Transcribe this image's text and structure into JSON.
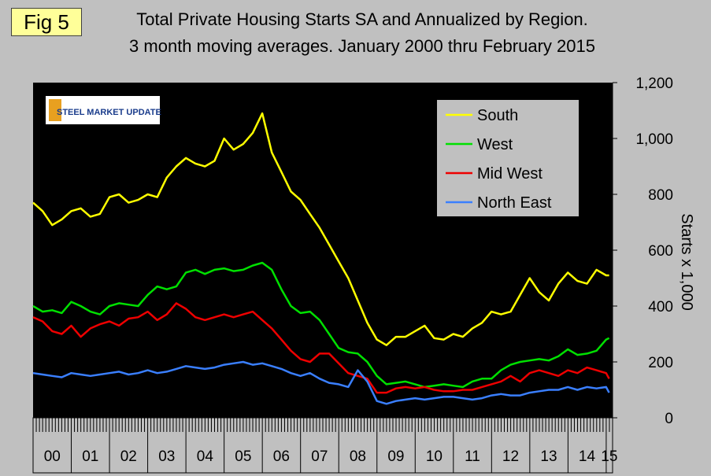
{
  "figure_label": "Fig 5",
  "logo_text": "STEEL MARKET UPDATE",
  "colors": {
    "plot_bg": "#000000",
    "south": "#ffff00",
    "west": "#00e000",
    "midwest": "#ee0000",
    "northeast": "#3a7fff",
    "page_bg": "#c0c0c0"
  },
  "chart_data": {
    "type": "line",
    "title": "Total Private Housing Starts SA and Annualized by Region.",
    "subtitle": "3 month moving averages. January 2000 thru February 2015",
    "ylabel": "Starts x 1,000",
    "xlabel": "",
    "ylim": [
      0,
      1200
    ],
    "yticks": [
      0,
      200,
      400,
      600,
      800,
      1000,
      1200
    ],
    "ytick_labels": [
      "0",
      "200",
      "400",
      "600",
      "800",
      "1,000",
      "1,200"
    ],
    "xlim": [
      2000.0,
      2015.17
    ],
    "year_labels": [
      "00",
      "01",
      "02",
      "03",
      "04",
      "05",
      "06",
      "07",
      "08",
      "09",
      "10",
      "11",
      "12",
      "13",
      "14",
      "15"
    ],
    "legend_position": "top-right",
    "grid": false,
    "series": [
      {
        "name": "South",
        "color": "#ffff00",
        "x": [
          2000.0,
          2000.25,
          2000.5,
          2000.75,
          2001.0,
          2001.25,
          2001.5,
          2001.75,
          2002.0,
          2002.25,
          2002.5,
          2002.75,
          2003.0,
          2003.25,
          2003.5,
          2003.75,
          2004.0,
          2004.25,
          2004.5,
          2004.75,
          2005.0,
          2005.25,
          2005.5,
          2005.75,
          2006.0,
          2006.25,
          2006.5,
          2006.75,
          2007.0,
          2007.25,
          2007.5,
          2007.75,
          2008.0,
          2008.25,
          2008.5,
          2008.75,
          2009.0,
          2009.25,
          2009.5,
          2009.75,
          2010.0,
          2010.25,
          2010.5,
          2010.75,
          2011.0,
          2011.25,
          2011.5,
          2011.75,
          2012.0,
          2012.25,
          2012.5,
          2012.75,
          2013.0,
          2013.25,
          2013.5,
          2013.75,
          2014.0,
          2014.25,
          2014.5,
          2014.75,
          2015.0,
          2015.08
        ],
        "y": [
          770,
          740,
          690,
          710,
          740,
          750,
          720,
          730,
          790,
          800,
          770,
          780,
          800,
          790,
          860,
          900,
          930,
          910,
          900,
          920,
          1000,
          960,
          980,
          1020,
          1090,
          950,
          880,
          810,
          780,
          730,
          680,
          620,
          560,
          500,
          420,
          340,
          280,
          260,
          290,
          290,
          310,
          330,
          285,
          280,
          300,
          290,
          320,
          340,
          380,
          370,
          380,
          440,
          500,
          450,
          420,
          480,
          520,
          490,
          480,
          530,
          510,
          510
        ]
      },
      {
        "name": "West",
        "color": "#00e000",
        "x": [
          2000.0,
          2000.25,
          2000.5,
          2000.75,
          2001.0,
          2001.25,
          2001.5,
          2001.75,
          2002.0,
          2002.25,
          2002.5,
          2002.75,
          2003.0,
          2003.25,
          2003.5,
          2003.75,
          2004.0,
          2004.25,
          2004.5,
          2004.75,
          2005.0,
          2005.25,
          2005.5,
          2005.75,
          2006.0,
          2006.25,
          2006.5,
          2006.75,
          2007.0,
          2007.25,
          2007.5,
          2007.75,
          2008.0,
          2008.25,
          2008.5,
          2008.75,
          2009.0,
          2009.25,
          2009.5,
          2009.75,
          2010.0,
          2010.25,
          2010.5,
          2010.75,
          2011.0,
          2011.25,
          2011.5,
          2011.75,
          2012.0,
          2012.25,
          2012.5,
          2012.75,
          2013.0,
          2013.25,
          2013.5,
          2013.75,
          2014.0,
          2014.25,
          2014.5,
          2014.75,
          2015.0,
          2015.08
        ],
        "y": [
          400,
          380,
          385,
          375,
          415,
          400,
          380,
          370,
          400,
          410,
          405,
          400,
          440,
          470,
          460,
          470,
          520,
          530,
          515,
          530,
          535,
          525,
          530,
          545,
          555,
          530,
          460,
          400,
          375,
          380,
          350,
          300,
          250,
          235,
          230,
          200,
          150,
          120,
          125,
          130,
          120,
          110,
          115,
          120,
          115,
          110,
          130,
          140,
          140,
          170,
          190,
          200,
          205,
          210,
          205,
          220,
          245,
          225,
          230,
          240,
          280,
          285
        ]
      },
      {
        "name": "Mid West",
        "color": "#ee0000",
        "x": [
          2000.0,
          2000.25,
          2000.5,
          2000.75,
          2001.0,
          2001.25,
          2001.5,
          2001.75,
          2002.0,
          2002.25,
          2002.5,
          2002.75,
          2003.0,
          2003.25,
          2003.5,
          2003.75,
          2004.0,
          2004.25,
          2004.5,
          2004.75,
          2005.0,
          2005.25,
          2005.5,
          2005.75,
          2006.0,
          2006.25,
          2006.5,
          2006.75,
          2007.0,
          2007.25,
          2007.5,
          2007.75,
          2008.0,
          2008.25,
          2008.5,
          2008.75,
          2009.0,
          2009.25,
          2009.5,
          2009.75,
          2010.0,
          2010.25,
          2010.5,
          2010.75,
          2011.0,
          2011.25,
          2011.5,
          2011.75,
          2012.0,
          2012.25,
          2012.5,
          2012.75,
          2013.0,
          2013.25,
          2013.5,
          2013.75,
          2014.0,
          2014.25,
          2014.5,
          2014.75,
          2015.0,
          2015.08
        ],
        "y": [
          360,
          345,
          310,
          300,
          330,
          290,
          320,
          335,
          345,
          330,
          355,
          360,
          380,
          350,
          370,
          410,
          390,
          360,
          350,
          360,
          370,
          360,
          370,
          380,
          350,
          320,
          280,
          240,
          210,
          200,
          230,
          230,
          195,
          160,
          150,
          140,
          90,
          90,
          105,
          110,
          105,
          110,
          100,
          95,
          95,
          100,
          100,
          110,
          120,
          130,
          150,
          130,
          160,
          170,
          160,
          150,
          170,
          160,
          180,
          170,
          160,
          140
        ]
      },
      {
        "name": "North East",
        "color": "#3a7fff",
        "x": [
          2000.0,
          2000.25,
          2000.5,
          2000.75,
          2001.0,
          2001.25,
          2001.5,
          2001.75,
          2002.0,
          2002.25,
          2002.5,
          2002.75,
          2003.0,
          2003.25,
          2003.5,
          2003.75,
          2004.0,
          2004.25,
          2004.5,
          2004.75,
          2005.0,
          2005.25,
          2005.5,
          2005.75,
          2006.0,
          2006.25,
          2006.5,
          2006.75,
          2007.0,
          2007.25,
          2007.5,
          2007.75,
          2008.0,
          2008.25,
          2008.5,
          2008.75,
          2009.0,
          2009.25,
          2009.5,
          2009.75,
          2010.0,
          2010.25,
          2010.5,
          2010.75,
          2011.0,
          2011.25,
          2011.5,
          2011.75,
          2012.0,
          2012.25,
          2012.5,
          2012.75,
          2013.0,
          2013.25,
          2013.5,
          2013.75,
          2014.0,
          2014.25,
          2014.5,
          2014.75,
          2015.0,
          2015.08
        ],
        "y": [
          160,
          155,
          150,
          145,
          160,
          155,
          150,
          155,
          160,
          165,
          155,
          160,
          170,
          160,
          165,
          175,
          185,
          180,
          175,
          180,
          190,
          195,
          200,
          190,
          195,
          185,
          175,
          160,
          150,
          160,
          140,
          125,
          120,
          110,
          170,
          130,
          60,
          50,
          60,
          65,
          70,
          65,
          70,
          75,
          75,
          70,
          65,
          70,
          80,
          85,
          80,
          80,
          90,
          95,
          100,
          100,
          110,
          100,
          110,
          105,
          110,
          90
        ]
      }
    ]
  }
}
